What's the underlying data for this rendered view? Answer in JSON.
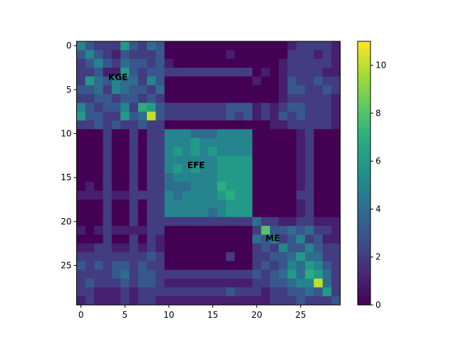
{
  "chart_data": {
    "type": "heatmap",
    "title": "",
    "xlabel": "",
    "ylabel": "",
    "colormap": "viridis",
    "rows": 30,
    "cols": 30,
    "x_ticks": [
      0,
      5,
      10,
      15,
      20,
      25
    ],
    "y_ticks": [
      0,
      5,
      10,
      15,
      20,
      25
    ],
    "colorbar": {
      "min": 0,
      "max": 11,
      "ticks": [
        0,
        2,
        4,
        6,
        8,
        10
      ]
    },
    "annotations": [
      {
        "text": "KGE",
        "row": 3.6,
        "col": 3.1
      },
      {
        "text": "EFE",
        "row": 13.6,
        "col": 12.1
      },
      {
        "text": "ME",
        "row": 21.9,
        "col": 21.0
      }
    ],
    "values": [
      [
        5,
        3,
        2,
        2,
        2,
        6,
        3,
        2,
        4,
        3,
        0,
        0,
        0,
        0,
        0,
        0,
        0,
        0,
        0,
        0,
        0,
        0,
        0,
        0,
        1,
        2,
        2,
        2,
        2,
        1
      ],
      [
        3,
        5,
        3,
        2,
        1,
        3,
        2,
        2,
        2,
        3,
        0,
        0,
        0,
        0,
        0,
        0,
        0,
        1,
        0,
        0,
        0,
        0,
        0,
        0,
        2,
        2,
        2,
        1,
        2,
        1
      ],
      [
        2,
        3,
        5,
        3,
        2,
        4,
        3,
        3,
        2,
        3,
        1,
        0,
        0,
        0,
        0,
        0,
        0,
        0,
        0,
        0,
        0,
        0,
        0,
        1,
        2,
        2,
        2,
        2,
        2,
        1
      ],
      [
        2,
        2,
        3,
        1,
        1,
        6,
        3,
        2,
        3,
        3,
        2,
        2,
        2,
        2,
        2,
        2,
        2,
        2,
        2,
        2,
        0,
        1,
        0,
        1,
        2,
        2,
        2,
        2,
        1,
        1
      ],
      [
        2,
        6,
        4,
        3,
        5,
        4,
        4,
        2,
        5,
        3,
        0,
        0,
        0,
        0,
        0,
        0,
        0,
        0,
        0,
        0,
        1,
        0,
        0,
        1,
        3,
        2,
        2,
        3,
        2,
        2
      ],
      [
        3,
        3,
        4,
        2,
        5,
        4,
        3,
        3,
        2,
        4,
        0,
        0,
        0,
        0,
        0,
        0,
        0,
        0,
        0,
        0,
        0,
        0,
        0,
        1,
        3,
        3,
        2,
        2,
        3,
        2
      ],
      [
        2,
        2,
        3,
        3,
        2,
        3,
        3,
        2,
        3,
        2,
        0,
        0,
        0,
        0,
        0,
        0,
        0,
        0,
        0,
        0,
        0,
        0,
        0,
        1,
        2,
        2,
        2,
        2,
        2,
        1
      ],
      [
        5,
        3,
        2,
        3,
        3,
        5,
        2,
        7,
        6,
        3,
        2,
        2,
        2,
        2,
        2,
        2,
        2,
        3,
        3,
        3,
        1,
        2,
        1,
        2,
        3,
        3,
        2,
        2,
        2,
        1
      ],
      [
        6,
        3,
        3,
        2,
        2,
        6,
        3,
        4,
        10,
        3,
        2,
        2,
        2,
        2,
        2,
        2,
        2,
        3,
        2,
        3,
        1,
        2,
        1,
        3,
        2,
        3,
        2,
        2,
        2,
        1
      ],
      [
        2,
        2,
        3,
        2,
        3,
        2,
        2,
        3,
        2,
        2,
        0,
        0,
        0,
        0,
        0,
        0,
        0,
        0,
        0,
        0,
        0,
        0,
        1,
        1,
        2,
        2,
        2,
        2,
        2,
        1
      ],
      [
        0,
        0,
        0,
        2,
        0,
        0,
        2,
        0,
        2,
        2,
        5,
        5,
        5,
        4,
        4,
        4,
        5,
        5,
        5,
        5,
        0,
        0,
        0,
        0,
        0,
        1,
        2,
        0,
        0,
        0
      ],
      [
        0,
        0,
        0,
        2,
        0,
        0,
        2,
        0,
        2,
        2,
        5,
        5,
        5,
        6,
        5,
        5,
        5,
        5,
        5,
        5,
        0,
        0,
        0,
        0,
        0,
        1,
        2,
        0,
        0,
        0
      ],
      [
        0,
        0,
        0,
        2,
        0,
        0,
        2,
        0,
        2,
        2,
        5,
        6,
        5,
        6,
        5,
        6,
        5,
        5,
        5,
        5,
        0,
        0,
        0,
        0,
        0,
        1,
        2,
        0,
        0,
        0
      ],
      [
        0,
        0,
        0,
        2,
        0,
        0,
        2,
        0,
        2,
        2,
        5,
        5,
        5,
        5,
        5,
        5,
        6,
        6,
        6,
        6,
        0,
        0,
        0,
        0,
        0,
        1,
        2,
        0,
        0,
        0
      ],
      [
        0,
        0,
        0,
        2,
        0,
        0,
        2,
        0,
        2,
        2,
        5,
        6,
        5,
        6,
        5,
        5,
        6,
        6,
        6,
        6,
        0,
        0,
        0,
        0,
        0,
        1,
        2,
        0,
        0,
        0
      ],
      [
        0,
        0,
        0,
        2,
        0,
        0,
        2,
        0,
        2,
        2,
        4,
        5,
        5,
        5,
        5,
        5,
        6,
        6,
        6,
        6,
        0,
        0,
        0,
        0,
        0,
        1,
        2,
        0,
        0,
        0
      ],
      [
        0,
        1,
        0,
        2,
        0,
        0,
        2,
        0,
        2,
        2,
        4,
        4,
        4,
        5,
        5,
        5,
        7,
        6,
        6,
        6,
        0,
        0,
        0,
        0,
        0,
        1,
        2,
        0,
        0,
        0
      ],
      [
        1,
        1,
        1,
        2,
        1,
        1,
        2,
        2,
        2,
        2,
        5,
        4,
        5,
        5,
        5,
        5,
        6,
        7,
        6,
        6,
        0,
        0,
        0,
        0,
        0,
        2,
        2,
        0,
        0,
        0
      ],
      [
        0,
        0,
        0,
        2,
        0,
        0,
        2,
        0,
        2,
        2,
        5,
        5,
        5,
        5,
        5,
        5,
        5,
        6,
        6,
        6,
        0,
        0,
        0,
        0,
        0,
        1,
        2,
        0,
        0,
        0
      ],
      [
        0,
        0,
        0,
        2,
        0,
        0,
        2,
        0,
        2,
        2,
        5,
        5,
        5,
        5,
        5,
        4,
        5,
        6,
        6,
        6,
        0,
        0,
        0,
        0,
        0,
        1,
        2,
        0,
        0,
        0
      ],
      [
        0,
        0,
        0,
        2,
        0,
        0,
        2,
        0,
        2,
        2,
        2,
        2,
        2,
        2,
        2,
        2,
        2,
        2,
        2,
        2,
        4,
        2,
        2,
        1,
        1,
        2,
        2,
        1,
        1,
        1
      ],
      [
        1,
        0,
        1,
        2,
        1,
        1,
        1,
        1,
        2,
        2,
        0,
        0,
        0,
        0,
        0,
        0,
        0,
        0,
        0,
        0,
        2,
        8,
        3,
        3,
        4,
        3,
        4,
        2,
        2,
        1
      ],
      [
        0,
        0,
        0,
        2,
        0,
        0,
        2,
        0,
        2,
        1,
        0,
        0,
        0,
        0,
        0,
        0,
        0,
        0,
        0,
        0,
        4,
        3,
        5,
        2,
        3,
        5,
        2,
        3,
        1,
        1
      ],
      [
        1,
        1,
        2,
        2,
        1,
        1,
        2,
        1,
        2,
        1,
        0,
        0,
        0,
        0,
        0,
        0,
        0,
        0,
        0,
        0,
        2,
        3,
        2,
        5,
        3,
        3,
        5,
        3,
        2,
        2
      ],
      [
        2,
        2,
        2,
        2,
        2,
        2,
        2,
        2,
        3,
        2,
        0,
        0,
        0,
        0,
        0,
        0,
        0,
        2,
        0,
        0,
        2,
        2,
        3,
        3,
        4,
        6,
        4,
        4,
        2,
        2
      ],
      [
        3,
        2,
        3,
        2,
        3,
        3,
        2,
        3,
        2,
        2,
        0,
        0,
        0,
        0,
        0,
        0,
        0,
        0,
        0,
        0,
        2,
        3,
        2,
        3,
        5,
        4,
        6,
        5,
        3,
        2
      ],
      [
        2,
        2,
        2,
        2,
        3,
        4,
        2,
        3,
        3,
        2,
        2,
        2,
        2,
        2,
        2,
        2,
        2,
        2,
        2,
        2,
        3,
        2,
        3,
        4,
        6,
        4,
        7,
        6,
        4,
        2
      ],
      [
        2,
        3,
        2,
        2,
        2,
        3,
        2,
        3,
        3,
        2,
        1,
        1,
        1,
        1,
        1,
        1,
        1,
        1,
        1,
        1,
        2,
        2,
        3,
        3,
        4,
        5,
        5,
        10,
        4,
        2
      ],
      [
        2,
        2,
        1,
        1,
        1,
        2,
        1,
        2,
        2,
        2,
        2,
        2,
        2,
        2,
        2,
        2,
        2,
        3,
        2,
        2,
        2,
        1,
        2,
        2,
        3,
        3,
        4,
        3,
        6,
        2
      ],
      [
        1,
        2,
        1,
        1,
        1,
        2,
        1,
        2,
        2,
        1,
        1,
        1,
        1,
        1,
        1,
        1,
        1,
        1,
        1,
        1,
        1,
        1,
        2,
        2,
        2,
        3,
        2,
        2,
        2,
        3
      ]
    ]
  }
}
